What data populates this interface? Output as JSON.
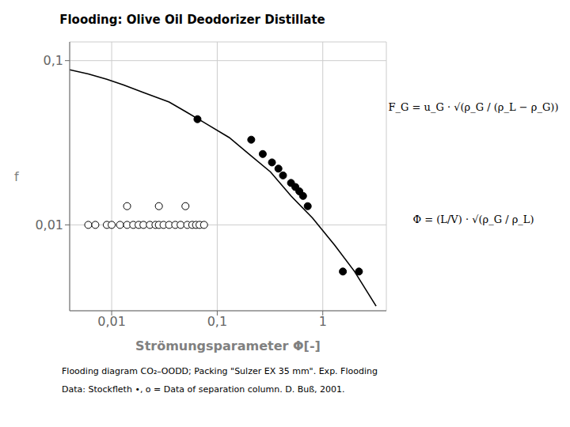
{
  "chart_data": {
    "type": "scatter",
    "title": "Flooding: Olive Oil Deodorizer Distillate",
    "x_label": "Strömungsparameter Φ[-]",
    "y_label": "f",
    "log": true,
    "grid": true,
    "xlim": [
      0.004,
      4.0
    ],
    "ylim": [
      0.003,
      0.13
    ],
    "xticks": [
      {
        "value": 0.01,
        "label": "0,01"
      },
      {
        "value": 0.1,
        "label": "0,1"
      },
      1
    ],
    "yticks": [
      {
        "value": 0.01,
        "label": "0,01"
      },
      {
        "value": 0.1,
        "label": "0,1"
      }
    ],
    "series": [
      {
        "type": "line",
        "line_style": "solid",
        "color": "#000000",
        "x": [
          0.004,
          0.006,
          0.009,
          0.013,
          0.02,
          0.035,
          0.05,
          0.08,
          0.13,
          0.2,
          0.32,
          0.5,
          0.8,
          1.3,
          2.0,
          3.2
        ],
        "values": [
          0.088,
          0.083,
          0.077,
          0.071,
          0.064,
          0.056,
          0.049,
          0.041,
          0.034,
          0.027,
          0.021,
          0.015,
          0.011,
          0.0075,
          0.0052,
          0.0032
        ]
      },
      {
        "type": "scatter",
        "marker": "filled_circle",
        "color": "#000000",
        "x": [
          0.065,
          0.21,
          0.27,
          0.33,
          0.38,
          0.42,
          0.5,
          0.55,
          0.6,
          0.65,
          0.72,
          1.55,
          2.2
        ],
        "values": [
          0.044,
          0.033,
          0.027,
          0.024,
          0.022,
          0.02,
          0.018,
          0.017,
          0.016,
          0.015,
          0.013,
          0.0052,
          0.0052
        ]
      },
      {
        "type": "scatter",
        "marker": "open_circle",
        "color": "#000000",
        "x": [
          0.006,
          0.007,
          0.009,
          0.01,
          0.012,
          0.014,
          0.016,
          0.018,
          0.02,
          0.023,
          0.026,
          0.028,
          0.031,
          0.035,
          0.04,
          0.045,
          0.052,
          0.058,
          0.063,
          0.068,
          0.075,
          0.014,
          0.028,
          0.05
        ],
        "values": [
          0.01,
          0.01,
          0.01,
          0.01,
          0.01,
          0.01,
          0.01,
          0.01,
          0.01,
          0.01,
          0.01,
          0.01,
          0.01,
          0.01,
          0.01,
          0.01,
          0.01,
          0.01,
          0.01,
          0.01,
          0.01,
          0.013,
          0.013,
          0.013
        ]
      }
    ],
    "annotations": [
      "F_G = u_G · √(ρ_G / (ρ_L − ρ_G))",
      "Φ = (L/V) · √(ρ_G / ρ_L)",
      "Flooding diagram CO₂–OODD; Packing \"Sulzer EX 35 mm\".  Exp. Flooding",
      "Data: Stockfleth •, o = Data of separation column. D. Buß, 2001."
    ]
  }
}
